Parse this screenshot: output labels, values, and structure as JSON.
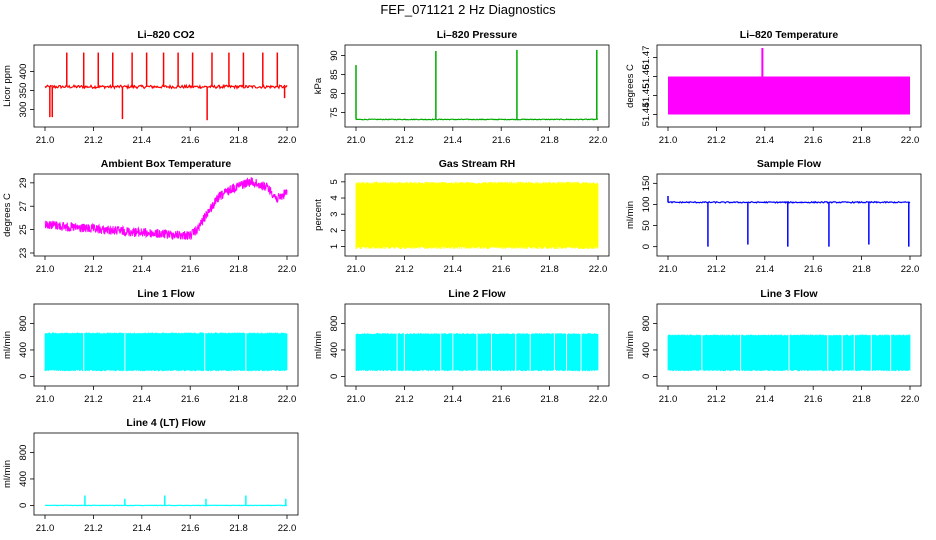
{
  "figure_title": "FEF_071121  2 Hz Diagnostics",
  "chart_data": [
    {
      "id": "co2",
      "type": "line",
      "title": "Li–820 CO2",
      "ylabel": "Licor ppm",
      "color": "#ff0000",
      "xlim": [
        21.0,
        22.0
      ],
      "ylim": [
        262,
        462
      ],
      "x_ticks": [
        21.0,
        21.2,
        21.4,
        21.6,
        21.8,
        22.0
      ],
      "x_tick_labels": [
        "21.0",
        "21.2",
        "21.4",
        "21.6",
        "21.8",
        "22.0"
      ],
      "y_ticks": [
        300,
        350,
        400
      ],
      "y_tick_labels": [
        "300",
        "350",
        "400"
      ],
      "signal": {
        "kind": "level",
        "base": 360,
        "noise": 4,
        "spikes": [
          [
            21.02,
            280
          ],
          [
            21.03,
            280
          ],
          [
            21.09,
            450
          ],
          [
            21.16,
            450
          ],
          [
            21.22,
            450
          ],
          [
            21.28,
            450
          ],
          [
            21.32,
            275
          ],
          [
            21.36,
            450
          ],
          [
            21.42,
            450
          ],
          [
            21.49,
            450
          ],
          [
            21.55,
            450
          ],
          [
            21.61,
            450
          ],
          [
            21.67,
            272
          ],
          [
            21.69,
            450
          ],
          [
            21.76,
            450
          ],
          [
            21.82,
            450
          ],
          [
            21.9,
            450
          ],
          [
            21.96,
            450
          ],
          [
            21.99,
            330
          ]
        ]
      }
    },
    {
      "id": "pressure",
      "type": "line",
      "title": "Li–820 Pressure",
      "ylabel": "kPa",
      "color": "#00aa00",
      "xlim": [
        21.0,
        22.0
      ],
      "ylim": [
        72,
        92
      ],
      "x_ticks": [
        21.0,
        21.2,
        21.4,
        21.6,
        21.8,
        22.0
      ],
      "x_tick_labels": [
        "21.0",
        "21.2",
        "21.4",
        "21.6",
        "21.8",
        "22.0"
      ],
      "y_ticks": [
        75,
        80,
        85,
        90
      ],
      "y_tick_labels": [
        "75",
        "80",
        "85",
        "90"
      ],
      "signal": {
        "kind": "level",
        "base": 73.2,
        "noise": 0.1,
        "spikes": [
          [
            21.0,
            87.5
          ],
          [
            21.33,
            91.2
          ],
          [
            21.665,
            91.5
          ],
          [
            21.995,
            91.5
          ]
        ]
      }
    },
    {
      "id": "temp",
      "type": "area",
      "title": "Li–820 Temperature",
      "ylabel": "degrees C",
      "color": "#ff00ff",
      "xlim": [
        21.0,
        22.0
      ],
      "ylim": [
        51.435,
        51.475
      ],
      "x_ticks": [
        21.0,
        21.2,
        21.4,
        21.6,
        21.8,
        22.0
      ],
      "x_tick_labels": [
        "21.0",
        "21.2",
        "21.4",
        "21.6",
        "21.8",
        "22.0"
      ],
      "y_ticks": [
        51.44,
        51.45,
        51.46,
        51.47
      ],
      "y_tick_labels": [
        "51.44",
        "51.45",
        "51.46",
        "51.47"
      ],
      "signal": {
        "kind": "band",
        "low": 51.44,
        "high": 51.46,
        "spike": [
          21.39,
          51.475
        ]
      }
    },
    {
      "id": "boxtemp",
      "type": "line",
      "title": "Ambient Box Temperature",
      "ylabel": "degrees C",
      "color": "#ff00ff",
      "xlim": [
        21.0,
        22.0
      ],
      "ylim": [
        23,
        29.5
      ],
      "x_ticks": [
        21.0,
        21.2,
        21.4,
        21.6,
        21.8,
        22.0
      ],
      "x_tick_labels": [
        "21.0",
        "21.2",
        "21.4",
        "21.6",
        "21.8",
        "22.0"
      ],
      "y_ticks": [
        23,
        25,
        27,
        29
      ],
      "y_tick_labels": [
        "23",
        "25",
        "27",
        "29"
      ],
      "signal": {
        "kind": "trend",
        "points": [
          [
            21.0,
            25.9
          ],
          [
            21.1,
            25.6
          ],
          [
            21.3,
            25.3
          ],
          [
            21.5,
            25.0
          ],
          [
            21.6,
            24.9
          ],
          [
            21.63,
            25.4
          ],
          [
            21.67,
            26.8
          ],
          [
            21.72,
            28.2
          ],
          [
            21.78,
            29.0
          ],
          [
            21.85,
            29.5
          ],
          [
            21.92,
            29.0
          ],
          [
            21.96,
            28.0
          ],
          [
            22.0,
            28.6
          ]
        ],
        "noise": 0.8
      }
    },
    {
      "id": "rh",
      "type": "line",
      "title": "Gas Stream RH",
      "ylabel": "percent",
      "color": "#ffff00",
      "xlim": [
        21.0,
        22.0
      ],
      "ylim": [
        0.6,
        5.3
      ],
      "x_ticks": [
        21.0,
        21.2,
        21.4,
        21.6,
        21.8,
        22.0
      ],
      "x_tick_labels": [
        "21.0",
        "21.2",
        "21.4",
        "21.6",
        "21.8",
        "22.0"
      ],
      "y_ticks": [
        1,
        2,
        3,
        4,
        5
      ],
      "y_tick_labels": [
        "1",
        "2",
        "3",
        "4",
        "5"
      ],
      "signal": {
        "kind": "osc",
        "low": 1.0,
        "high": 4.9
      }
    },
    {
      "id": "sflow",
      "type": "line",
      "title": "Sample Flow",
      "ylabel": "ml/min",
      "color": "#0000ff",
      "xlim": [
        21.0,
        22.0
      ],
      "ylim": [
        -15,
        165
      ],
      "x_ticks": [
        21.0,
        21.2,
        21.4,
        21.6,
        21.8,
        22.0
      ],
      "x_tick_labels": [
        "21.0",
        "21.2",
        "21.4",
        "21.6",
        "21.8",
        "22.0"
      ],
      "y_ticks": [
        0,
        50,
        100,
        150
      ],
      "y_tick_labels": [
        "0",
        "50",
        "100",
        "150"
      ],
      "signal": {
        "kind": "level",
        "base": 105,
        "noise": 1.5,
        "spikes": [
          [
            21.0,
            120
          ],
          [
            21.165,
            0
          ],
          [
            21.33,
            5
          ],
          [
            21.495,
            0
          ],
          [
            21.665,
            0
          ],
          [
            21.83,
            5
          ],
          [
            21.995,
            0
          ]
        ]
      }
    },
    {
      "id": "line1",
      "type": "line",
      "title": "Line 1 Flow",
      "ylabel": "ml/min",
      "color": "#00ffff",
      "xlim": [
        21.0,
        22.0
      ],
      "ylim": [
        -100,
        1050
      ],
      "x_ticks": [
        21.0,
        21.2,
        21.4,
        21.6,
        21.8,
        22.0
      ],
      "x_tick_labels": [
        "21.0",
        "21.2",
        "21.4",
        "21.6",
        "21.8",
        "22.0"
      ],
      "y_ticks": [
        0,
        400,
        800
      ],
      "y_tick_labels": [
        "0",
        "400",
        "800"
      ],
      "signal": {
        "kind": "osc",
        "low": 100,
        "high": 650,
        "gaps": [
          21.16,
          21.33,
          21.66,
          21.83
        ]
      }
    },
    {
      "id": "line2",
      "type": "line",
      "title": "Line 2 Flow",
      "ylabel": "ml/min",
      "color": "#00ffff",
      "xlim": [
        21.0,
        22.0
      ],
      "ylim": [
        -100,
        1050
      ],
      "x_ticks": [
        21.0,
        21.2,
        21.4,
        21.6,
        21.8,
        22.0
      ],
      "x_tick_labels": [
        "21.0",
        "21.2",
        "21.4",
        "21.6",
        "21.8",
        "22.0"
      ],
      "y_ticks": [
        0,
        400,
        800
      ],
      "y_tick_labels": [
        "0",
        "400",
        "800"
      ],
      "signal": {
        "kind": "osc",
        "low": 100,
        "high": 640,
        "gaps": [
          21.17,
          21.2,
          21.35,
          21.4,
          21.5,
          21.56,
          21.66,
          21.72,
          21.82,
          21.87,
          21.93
        ]
      }
    },
    {
      "id": "line3",
      "type": "line",
      "title": "Line 3 Flow",
      "ylabel": "ml/min",
      "color": "#00ffff",
      "xlim": [
        21.0,
        22.0
      ],
      "ylim": [
        -100,
        1050
      ],
      "x_ticks": [
        21.0,
        21.2,
        21.4,
        21.6,
        21.8,
        22.0
      ],
      "x_tick_labels": [
        "21.0",
        "21.2",
        "21.4",
        "21.6",
        "21.8",
        "22.0"
      ],
      "y_ticks": [
        0,
        400,
        800
      ],
      "y_tick_labels": [
        "0",
        "400",
        "800"
      ],
      "signal": {
        "kind": "osc",
        "low": 100,
        "high": 620,
        "gaps": [
          21.14,
          21.3,
          21.5,
          21.66,
          21.72,
          21.77,
          21.84,
          21.92
        ]
      }
    },
    {
      "id": "line4",
      "type": "line",
      "title": "Line 4 (LT) Flow",
      "ylabel": "ml/min",
      "color": "#00ffff",
      "xlim": [
        21.0,
        22.0
      ],
      "ylim": [
        -100,
        1050
      ],
      "x_ticks": [
        21.0,
        21.2,
        21.4,
        21.6,
        21.8,
        22.0
      ],
      "x_tick_labels": [
        "21.0",
        "21.2",
        "21.4",
        "21.6",
        "21.8",
        "22.0"
      ],
      "y_ticks": [
        0,
        400,
        800
      ],
      "y_tick_labels": [
        "0",
        "400",
        "800"
      ],
      "signal": {
        "kind": "level",
        "base": 0,
        "noise": 3,
        "spikes": [
          [
            21.165,
            150
          ],
          [
            21.33,
            100
          ],
          [
            21.495,
            150
          ],
          [
            21.665,
            100
          ],
          [
            21.83,
            150
          ],
          [
            21.995,
            100
          ]
        ]
      }
    }
  ]
}
